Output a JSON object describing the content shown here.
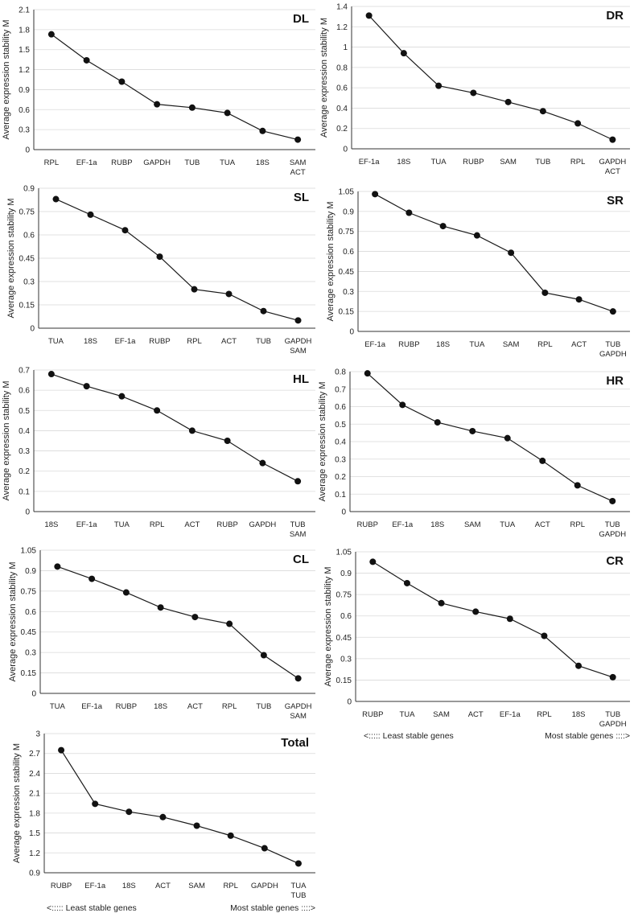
{
  "figure": {
    "least_stable_label": "<:::::  Least stable genes",
    "most_stable_label": "Most stable genes ::::>"
  },
  "chart_data": [
    {
      "type": "line",
      "title": "DL",
      "ylabel": "Average expression stability M",
      "categories": [
        "RPL",
        "EF-1a",
        "RUBP",
        "GAPDH",
        "TUB",
        "TUA",
        "18S",
        "SAM\nACT"
      ],
      "values": [
        1.73,
        1.34,
        1.02,
        0.68,
        0.63,
        0.55,
        0.28,
        0.15
      ],
      "ylim": [
        0,
        2.1
      ],
      "yticks": [
        "0",
        "0.3",
        "0.6",
        "0.9",
        "1.2",
        "1.5",
        "1.8",
        "2.1"
      ]
    },
    {
      "type": "line",
      "title": "DR",
      "ylabel": "Average expression stability M",
      "categories": [
        "EF-1a",
        "18S",
        "TUA",
        "RUBP",
        "SAM",
        "TUB",
        "RPL",
        "GAPDH\nACT"
      ],
      "values": [
        1.31,
        0.94,
        0.62,
        0.55,
        0.46,
        0.37,
        0.25,
        0.09
      ],
      "ylim": [
        0,
        1.4
      ],
      "yticks": [
        "0",
        "0.2",
        "0.4",
        "0.6",
        "0.8",
        "1",
        "1.2",
        "1.4"
      ]
    },
    {
      "type": "line",
      "title": "SL",
      "ylabel": "Average expression stability M",
      "categories": [
        "TUA",
        "18S",
        "EF-1a",
        "RUBP",
        "RPL",
        "ACT",
        "TUB",
        "GAPDH\nSAM"
      ],
      "values": [
        0.83,
        0.73,
        0.63,
        0.46,
        0.25,
        0.22,
        0.11,
        0.05
      ],
      "ylim": [
        0,
        0.9
      ],
      "yticks": [
        "0",
        "0.15",
        "0.3",
        "0.45",
        "0.6",
        "0.75",
        "0.9"
      ]
    },
    {
      "type": "line",
      "title": "SR",
      "ylabel": "Average expression stability M",
      "categories": [
        "EF-1a",
        "RUBP",
        "18S",
        "TUA",
        "SAM",
        "RPL",
        "ACT",
        "TUB\nGAPDH"
      ],
      "values": [
        1.03,
        0.89,
        0.79,
        0.72,
        0.59,
        0.29,
        0.24,
        0.15
      ],
      "ylim": [
        0,
        1.05
      ],
      "yticks": [
        "0",
        "0.15",
        "0.3",
        "0.45",
        "0.6",
        "0.75",
        "0.9",
        "1.05"
      ]
    },
    {
      "type": "line",
      "title": "HL",
      "ylabel": "Average expression stability M",
      "categories": [
        "18S",
        "EF-1a",
        "TUA",
        "RPL",
        "ACT",
        "RUBP",
        "GAPDH",
        "TUB\nSAM"
      ],
      "values": [
        0.68,
        0.62,
        0.57,
        0.5,
        0.4,
        0.35,
        0.24,
        0.15
      ],
      "ylim": [
        0,
        0.7
      ],
      "yticks": [
        "0",
        "0.1",
        "0.2",
        "0.3",
        "0.4",
        "0.5",
        "0.6",
        "0.7"
      ]
    },
    {
      "type": "line",
      "title": "HR",
      "ylabel": "Average expression stability M",
      "categories": [
        "RUBP",
        "EF-1a",
        "18S",
        "SAM",
        "TUA",
        "ACT",
        "RPL",
        "TUB\nGAPDH"
      ],
      "values": [
        0.79,
        0.61,
        0.51,
        0.46,
        0.42,
        0.29,
        0.15,
        0.06
      ],
      "ylim": [
        0,
        0.8
      ],
      "yticks": [
        "0",
        "0.1",
        "0.2",
        "0.3",
        "0.4",
        "0.5",
        "0.6",
        "0.7",
        "0.8"
      ]
    },
    {
      "type": "line",
      "title": "CL",
      "ylabel": "Average expression stability M",
      "categories": [
        "TUA",
        "EF-1a",
        "RUBP",
        "18S",
        "ACT",
        "RPL",
        "TUB",
        "GAPDH\nSAM"
      ],
      "values": [
        0.93,
        0.84,
        0.74,
        0.63,
        0.56,
        0.51,
        0.28,
        0.11
      ],
      "ylim": [
        0,
        1.05
      ],
      "yticks": [
        "0",
        "0.15",
        "0.3",
        "0.45",
        "0.6",
        "0.75",
        "0.9",
        "1.05"
      ]
    },
    {
      "type": "line",
      "title": "CR",
      "ylabel": "Average expression stability M",
      "categories": [
        "RUBP",
        "TUA",
        "SAM",
        "ACT",
        "EF-1a",
        "RPL",
        "18S",
        "TUB\nGAPDH"
      ],
      "values": [
        0.98,
        0.83,
        0.69,
        0.63,
        0.58,
        0.46,
        0.25,
        0.17
      ],
      "ylim": [
        0,
        1.05
      ],
      "yticks": [
        "0",
        "0.15",
        "0.3",
        "0.45",
        "0.6",
        "0.75",
        "0.9",
        "1.05"
      ]
    },
    {
      "type": "line",
      "title": "Total",
      "ylabel": "Average expression stability M",
      "categories": [
        "RUBP",
        "EF-1a",
        "18S",
        "ACT",
        "SAM",
        "RPL",
        "GAPDH",
        "TUA\nTUB"
      ],
      "values": [
        2.75,
        1.94,
        1.82,
        1.74,
        1.61,
        1.46,
        1.27,
        1.04
      ],
      "ylim": [
        0.9,
        3
      ],
      "yticks": [
        "0.9",
        "1.2",
        "1.5",
        "1.8",
        "2.1",
        "2.4",
        "2.7",
        "3"
      ]
    }
  ]
}
